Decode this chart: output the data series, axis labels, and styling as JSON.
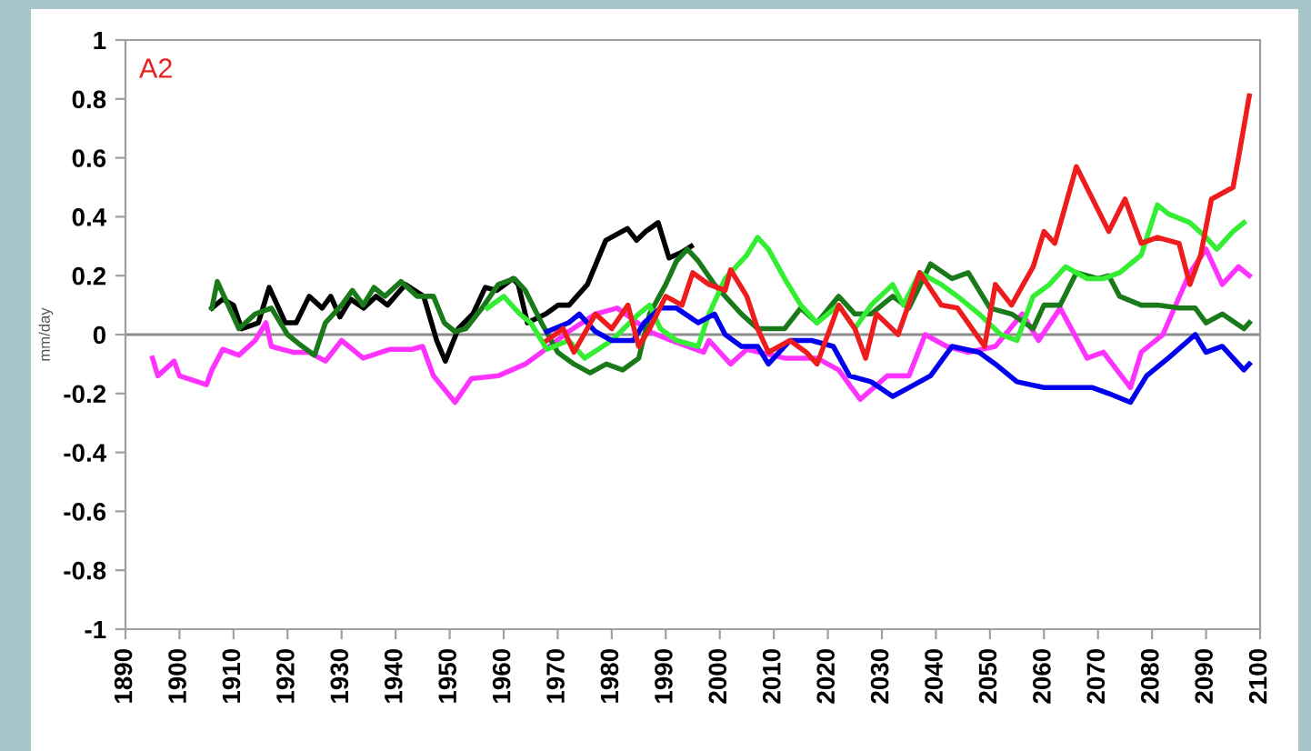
{
  "chart_data": {
    "type": "line",
    "ylabel": "mm/day",
    "annotations": [
      "A2"
    ],
    "xlim": [
      1890,
      2100
    ],
    "xticks": [
      1890,
      1900,
      1910,
      1920,
      1930,
      1940,
      1950,
      1960,
      1970,
      1980,
      1990,
      2000,
      2010,
      2020,
      2030,
      2040,
      2050,
      2060,
      2070,
      2080,
      2090,
      2100
    ],
    "ylim": [
      -1,
      1
    ],
    "yticks": [
      -1,
      -0.8,
      -0.6,
      -0.4,
      -0.2,
      0,
      0.2,
      0.4,
      0.6,
      0.8,
      1
    ],
    "grid": false,
    "marker": "none",
    "line_style": "solid",
    "ref_lines": [
      {
        "axis": "y",
        "value": 0,
        "color": "#8c8c8c"
      }
    ],
    "series": [
      {
        "color": "#ff33ff",
        "x": [
          1895,
          1896,
          1899,
          1900,
          1905,
          1906,
          1908,
          1911,
          1914,
          1916,
          1917,
          1921,
          1924,
          1927,
          1930,
          1934,
          1939,
          1943,
          1945,
          1947,
          1951,
          1954,
          1959,
          1964,
          1967,
          1972,
          1977,
          1981,
          1987,
          1991,
          1997,
          1998,
          2002,
          2005,
          2012,
          2018,
          2022,
          2026,
          2031,
          2035,
          2038,
          2042,
          2046,
          2051,
          2056,
          2059,
          2063,
          2068,
          2071,
          2076,
          2078,
          2082,
          2087,
          2090,
          2093,
          2096,
          2098
        ],
        "values": [
          -0.08,
          -0.14,
          -0.09,
          -0.14,
          -0.17,
          -0.12,
          -0.05,
          -0.07,
          -0.02,
          0.04,
          -0.04,
          -0.06,
          -0.06,
          -0.09,
          -0.02,
          -0.08,
          -0.05,
          -0.05,
          -0.04,
          -0.14,
          -0.23,
          -0.15,
          -0.14,
          -0.1,
          -0.06,
          0.01,
          0.07,
          0.09,
          0.01,
          -0.02,
          -0.06,
          -0.02,
          -0.1,
          -0.05,
          -0.08,
          -0.08,
          -0.12,
          -0.22,
          -0.14,
          -0.14,
          0.0,
          -0.04,
          -0.06,
          -0.04,
          0.07,
          -0.02,
          0.09,
          -0.08,
          -0.06,
          -0.18,
          -0.06,
          0.0,
          0.21,
          0.29,
          0.17,
          0.23,
          0.2
        ]
      },
      {
        "color": "#000000",
        "x": [
          1906,
          1908,
          1910,
          1911.5,
          1914.6,
          1916.6,
          1919.6,
          1921.6,
          1924,
          1926.4,
          1928,
          1929.7,
          1931.7,
          1934.1,
          1936.4,
          1938.5,
          1941.8,
          1945.2,
          1947.6,
          1949.2,
          1951.6,
          1954.3,
          1956.6,
          1958.7,
          1961.7,
          1962.7,
          1964.4,
          1967.8,
          1970.1,
          1972.1,
          1975.5,
          1978.9,
          1982.9,
          1984.6,
          1986.3,
          1988.6,
          1990.6,
          1993,
          1994.7
        ],
        "values": [
          0.09,
          0.12,
          0.1,
          0.02,
          0.04,
          0.16,
          0.04,
          0.04,
          0.13,
          0.09,
          0.13,
          0.06,
          0.12,
          0.09,
          0.13,
          0.1,
          0.17,
          0.13,
          -0.02,
          -0.09,
          0.02,
          0.07,
          0.16,
          0.15,
          0.19,
          0.17,
          0.04,
          0.07,
          0.1,
          0.1,
          0.17,
          0.32,
          0.36,
          0.32,
          0.35,
          0.38,
          0.26,
          0.28,
          0.3
        ]
      },
      {
        "color": "#1a7a1a",
        "x": [
          1906,
          1907,
          1909,
          1911,
          1914,
          1917,
          1920,
          1922,
          1925,
          1927,
          1930,
          1932,
          1934,
          1936,
          1938,
          1941,
          1944,
          1947,
          1949,
          1951,
          1953,
          1956,
          1959,
          1962,
          1964,
          1967,
          1970,
          1973,
          1976,
          1979,
          1982,
          1985,
          1987,
          1990,
          1992,
          1994,
          1996,
          1999,
          2004,
          2007,
          2012,
          2015,
          2018,
          2022,
          2025,
          2028,
          2032,
          2035,
          2039,
          2043,
          2046,
          2050,
          2054,
          2058,
          2060,
          2063,
          2066,
          2070,
          2072,
          2074,
          2078,
          2081,
          2085,
          2088,
          2090,
          2093,
          2097,
          2098
        ],
        "values": [
          0.09,
          0.18,
          0.1,
          0.02,
          0.07,
          0.09,
          0.0,
          -0.03,
          -0.07,
          0.04,
          0.1,
          0.15,
          0.1,
          0.16,
          0.13,
          0.18,
          0.13,
          0.13,
          0.04,
          0.01,
          0.02,
          0.09,
          0.17,
          0.19,
          0.15,
          0.04,
          -0.06,
          -0.1,
          -0.13,
          -0.1,
          -0.12,
          -0.08,
          0.07,
          0.17,
          0.25,
          0.29,
          0.25,
          0.17,
          0.07,
          0.02,
          0.02,
          0.09,
          0.04,
          0.13,
          0.07,
          0.07,
          0.13,
          0.09,
          0.24,
          0.19,
          0.21,
          0.09,
          0.07,
          0.02,
          0.1,
          0.1,
          0.21,
          0.19,
          0.2,
          0.13,
          0.1,
          0.1,
          0.09,
          0.09,
          0.04,
          0.07,
          0.02,
          0.04
        ]
      },
      {
        "color": "#33ee33",
        "x": [
          1957,
          1960,
          1963,
          1965,
          1968,
          1972,
          1975,
          1980,
          1985,
          1987,
          1989,
          1992,
          1996,
          1998,
          2001,
          2005,
          2007,
          2009,
          2012,
          2015,
          2018,
          2022,
          2025,
          2028,
          2032,
          2034,
          2037,
          2041,
          2044,
          2048,
          2052,
          2055,
          2058,
          2061,
          2064,
          2068,
          2071,
          2074,
          2078,
          2081,
          2083,
          2087,
          2090,
          2092,
          2095,
          2097
        ],
        "values": [
          0.09,
          0.13,
          0.07,
          0.04,
          -0.05,
          -0.02,
          -0.08,
          -0.02,
          0.07,
          0.1,
          0.02,
          -0.02,
          -0.04,
          0.07,
          0.19,
          0.27,
          0.33,
          0.29,
          0.19,
          0.1,
          0.04,
          0.1,
          0.02,
          0.1,
          0.17,
          0.1,
          0.21,
          0.17,
          0.13,
          0.07,
          0.0,
          -0.02,
          0.13,
          0.17,
          0.23,
          0.19,
          0.19,
          0.21,
          0.27,
          0.44,
          0.41,
          0.38,
          0.33,
          0.29,
          0.35,
          0.38
        ]
      },
      {
        "color": "#0000ee",
        "x": [
          1968,
          1972,
          1974,
          1977,
          1980,
          1984,
          1986,
          1989,
          1992,
          1996,
          1999,
          2001,
          2004,
          2007,
          2009,
          2013,
          2017,
          2021,
          2024,
          2028,
          2032,
          2035,
          2039,
          2043,
          2048,
          2051,
          2055,
          2060,
          2064,
          2069,
          2072,
          2076,
          2079,
          2083,
          2088,
          2090,
          2093,
          2097,
          2098
        ],
        "values": [
          0.01,
          0.04,
          0.07,
          0.01,
          -0.02,
          -0.02,
          0.04,
          0.09,
          0.09,
          0.04,
          0.07,
          0.0,
          -0.04,
          -0.04,
          -0.1,
          -0.02,
          -0.02,
          -0.04,
          -0.14,
          -0.16,
          -0.21,
          -0.18,
          -0.14,
          -0.04,
          -0.06,
          -0.1,
          -0.16,
          -0.18,
          -0.18,
          -0.18,
          -0.2,
          -0.23,
          -0.14,
          -0.08,
          0.0,
          -0.06,
          -0.04,
          -0.12,
          -0.1
        ]
      },
      {
        "color": "#ee1c1c",
        "x": [
          1968,
          1971,
          1973,
          1977,
          1980,
          1983,
          1985,
          1987,
          1990,
          1993,
          1995,
          1998,
          2001,
          2002,
          2005,
          2007,
          2009,
          2013,
          2016,
          2018,
          2022,
          2025,
          2027,
          2029,
          2033,
          2037,
          2041,
          2044,
          2049,
          2051,
          2054,
          2058,
          2060,
          2062,
          2064,
          2066,
          2069,
          2072,
          2075,
          2078,
          2081,
          2085,
          2087,
          2089,
          2091,
          2095,
          2096,
          2098
        ],
        "values": [
          -0.02,
          0.02,
          -0.06,
          0.07,
          0.02,
          0.1,
          -0.04,
          0.02,
          0.13,
          0.1,
          0.21,
          0.17,
          0.15,
          0.22,
          0.13,
          0.02,
          -0.06,
          -0.02,
          -0.06,
          -0.1,
          0.1,
          0.02,
          -0.08,
          0.07,
          0.0,
          0.21,
          0.1,
          0.09,
          -0.04,
          0.17,
          0.1,
          0.23,
          0.35,
          0.31,
          0.44,
          0.57,
          0.46,
          0.35,
          0.46,
          0.31,
          0.33,
          0.31,
          0.17,
          0.27,
          0.46,
          0.5,
          0.6,
          0.81
        ]
      }
    ]
  }
}
